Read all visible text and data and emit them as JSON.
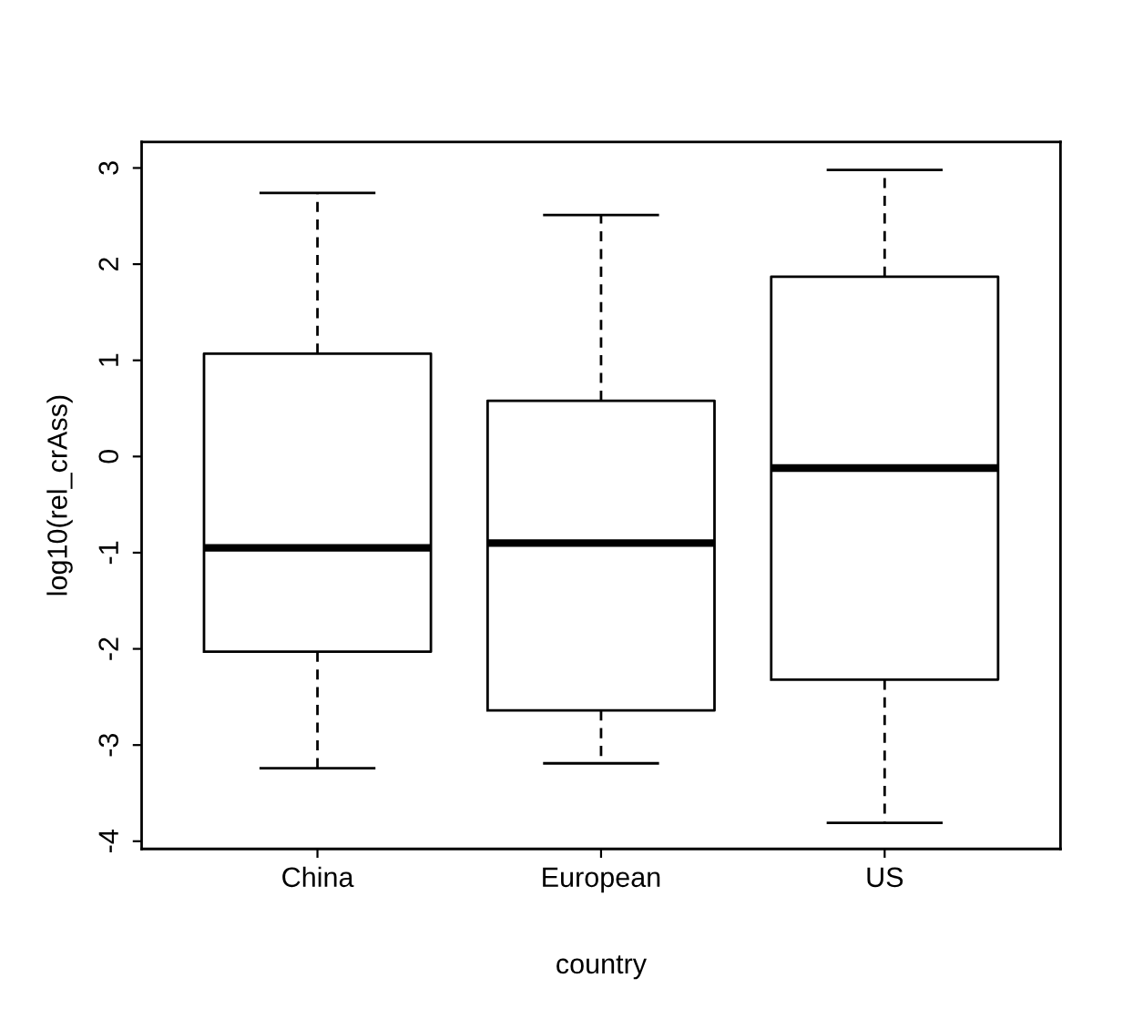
{
  "chart_data": {
    "type": "box",
    "xlabel": "country",
    "ylabel": "log10(rel_crAss)",
    "categories": [
      "China",
      "European",
      "US"
    ],
    "boxes": [
      {
        "low": -3.24,
        "q1": -2.03,
        "median": -0.95,
        "q3": 1.07,
        "high": 2.74
      },
      {
        "low": -3.19,
        "q1": -2.64,
        "median": -0.9,
        "q3": 0.58,
        "high": 2.51
      },
      {
        "low": -3.81,
        "q1": -2.32,
        "median": -0.12,
        "q3": 1.87,
        "high": 2.98
      }
    ],
    "ylim": [
      -4.08,
      3.27
    ],
    "yticks": [
      -4,
      -3,
      -2,
      -1,
      0,
      1,
      2,
      3
    ],
    "grid": false,
    "legend": false
  }
}
